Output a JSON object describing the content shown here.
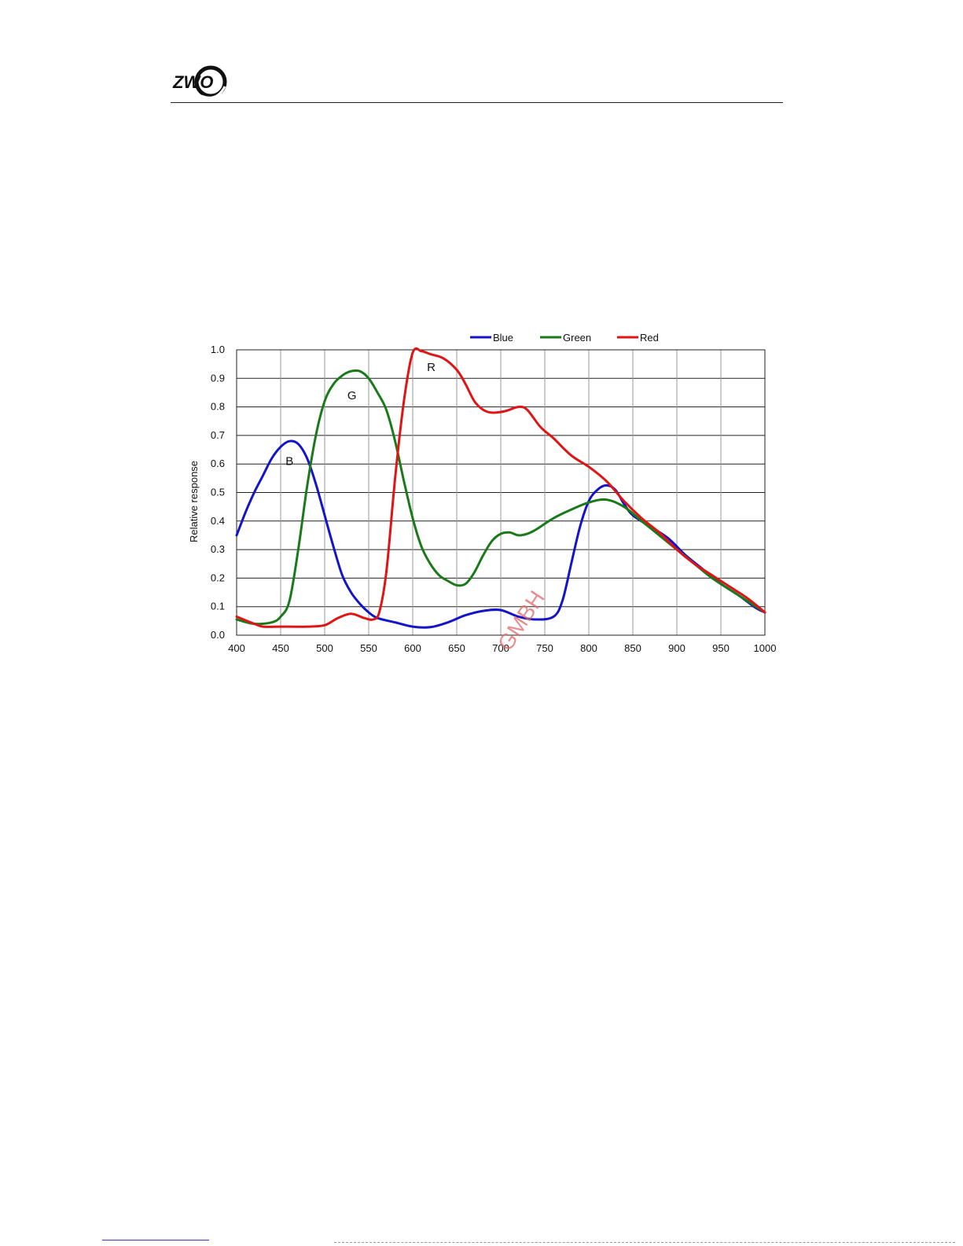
{
  "header": {
    "logo": {
      "text": "ZWO",
      "icon": "zwo-logo-icon",
      "color": "#111111"
    },
    "rule_color": "#222222"
  },
  "watermark": {
    "text": "GMBH",
    "color": "#e06666"
  },
  "chart_data": {
    "type": "line",
    "title": "",
    "xlabel": "",
    "ylabel": "Relative response",
    "xlim": [
      400,
      1000
    ],
    "ylim": [
      0,
      1.0
    ],
    "xticks": [
      400,
      450,
      500,
      550,
      600,
      650,
      700,
      750,
      800,
      850,
      900,
      950,
      1000
    ],
    "yticks": [
      0.0,
      0.1,
      0.2,
      0.3,
      0.4,
      0.5,
      0.6,
      0.7,
      0.8,
      0.9,
      1.0
    ],
    "grid": true,
    "legend": "top-right",
    "series": [
      {
        "name": "Blue",
        "color": "#1414c8",
        "points": [
          [
            400,
            0.35
          ],
          [
            410,
            0.43
          ],
          [
            420,
            0.5
          ],
          [
            430,
            0.56
          ],
          [
            440,
            0.62
          ],
          [
            450,
            0.66
          ],
          [
            460,
            0.68
          ],
          [
            470,
            0.67
          ],
          [
            480,
            0.62
          ],
          [
            490,
            0.53
          ],
          [
            500,
            0.42
          ],
          [
            510,
            0.31
          ],
          [
            520,
            0.21
          ],
          [
            530,
            0.15
          ],
          [
            540,
            0.11
          ],
          [
            550,
            0.08
          ],
          [
            560,
            0.06
          ],
          [
            580,
            0.045
          ],
          [
            600,
            0.03
          ],
          [
            620,
            0.028
          ],
          [
            640,
            0.045
          ],
          [
            660,
            0.07
          ],
          [
            680,
            0.085
          ],
          [
            700,
            0.088
          ],
          [
            720,
            0.065
          ],
          [
            740,
            0.055
          ],
          [
            760,
            0.065
          ],
          [
            770,
            0.12
          ],
          [
            780,
            0.25
          ],
          [
            790,
            0.38
          ],
          [
            800,
            0.47
          ],
          [
            810,
            0.51
          ],
          [
            820,
            0.525
          ],
          [
            830,
            0.51
          ],
          [
            840,
            0.46
          ],
          [
            850,
            0.42
          ],
          [
            870,
            0.38
          ],
          [
            890,
            0.34
          ],
          [
            910,
            0.28
          ],
          [
            930,
            0.23
          ],
          [
            950,
            0.18
          ],
          [
            970,
            0.14
          ],
          [
            990,
            0.095
          ],
          [
            1000,
            0.08
          ]
        ]
      },
      {
        "name": "Green",
        "color": "#1a7a1a",
        "points": [
          [
            400,
            0.055
          ],
          [
            420,
            0.04
          ],
          [
            440,
            0.045
          ],
          [
            450,
            0.065
          ],
          [
            460,
            0.12
          ],
          [
            470,
            0.3
          ],
          [
            480,
            0.52
          ],
          [
            490,
            0.7
          ],
          [
            500,
            0.82
          ],
          [
            510,
            0.88
          ],
          [
            520,
            0.91
          ],
          [
            530,
            0.925
          ],
          [
            540,
            0.925
          ],
          [
            550,
            0.9
          ],
          [
            560,
            0.85
          ],
          [
            570,
            0.79
          ],
          [
            580,
            0.68
          ],
          [
            590,
            0.54
          ],
          [
            600,
            0.41
          ],
          [
            610,
            0.31
          ],
          [
            620,
            0.25
          ],
          [
            630,
            0.21
          ],
          [
            640,
            0.19
          ],
          [
            650,
            0.175
          ],
          [
            660,
            0.18
          ],
          [
            670,
            0.22
          ],
          [
            680,
            0.28
          ],
          [
            690,
            0.33
          ],
          [
            700,
            0.355
          ],
          [
            710,
            0.36
          ],
          [
            720,
            0.35
          ],
          [
            730,
            0.355
          ],
          [
            740,
            0.37
          ],
          [
            760,
            0.41
          ],
          [
            780,
            0.44
          ],
          [
            800,
            0.465
          ],
          [
            820,
            0.475
          ],
          [
            840,
            0.45
          ],
          [
            860,
            0.4
          ],
          [
            880,
            0.35
          ],
          [
            900,
            0.3
          ],
          [
            920,
            0.25
          ],
          [
            940,
            0.2
          ],
          [
            960,
            0.16
          ],
          [
            980,
            0.12
          ],
          [
            1000,
            0.08
          ]
        ]
      },
      {
        "name": "Red",
        "color": "#e01414",
        "points": [
          [
            400,
            0.065
          ],
          [
            420,
            0.04
          ],
          [
            430,
            0.03
          ],
          [
            450,
            0.03
          ],
          [
            480,
            0.03
          ],
          [
            500,
            0.035
          ],
          [
            515,
            0.06
          ],
          [
            530,
            0.075
          ],
          [
            545,
            0.06
          ],
          [
            555,
            0.055
          ],
          [
            562,
            0.08
          ],
          [
            570,
            0.22
          ],
          [
            580,
            0.55
          ],
          [
            590,
            0.82
          ],
          [
            600,
            0.99
          ],
          [
            610,
            0.995
          ],
          [
            620,
            0.985
          ],
          [
            635,
            0.97
          ],
          [
            650,
            0.93
          ],
          [
            660,
            0.88
          ],
          [
            670,
            0.82
          ],
          [
            680,
            0.79
          ],
          [
            690,
            0.78
          ],
          [
            705,
            0.785
          ],
          [
            720,
            0.8
          ],
          [
            730,
            0.79
          ],
          [
            745,
            0.73
          ],
          [
            760,
            0.69
          ],
          [
            780,
            0.63
          ],
          [
            800,
            0.59
          ],
          [
            820,
            0.54
          ],
          [
            840,
            0.47
          ],
          [
            860,
            0.41
          ],
          [
            880,
            0.36
          ],
          [
            900,
            0.3
          ],
          [
            920,
            0.25
          ],
          [
            940,
            0.21
          ],
          [
            960,
            0.17
          ],
          [
            980,
            0.13
          ],
          [
            1000,
            0.08
          ]
        ]
      }
    ],
    "annotations": [
      {
        "text": "B",
        "x": 460,
        "y": 0.61
      },
      {
        "text": "G",
        "x": 531,
        "y": 0.84
      },
      {
        "text": "R",
        "x": 621,
        "y": 0.94
      }
    ]
  }
}
